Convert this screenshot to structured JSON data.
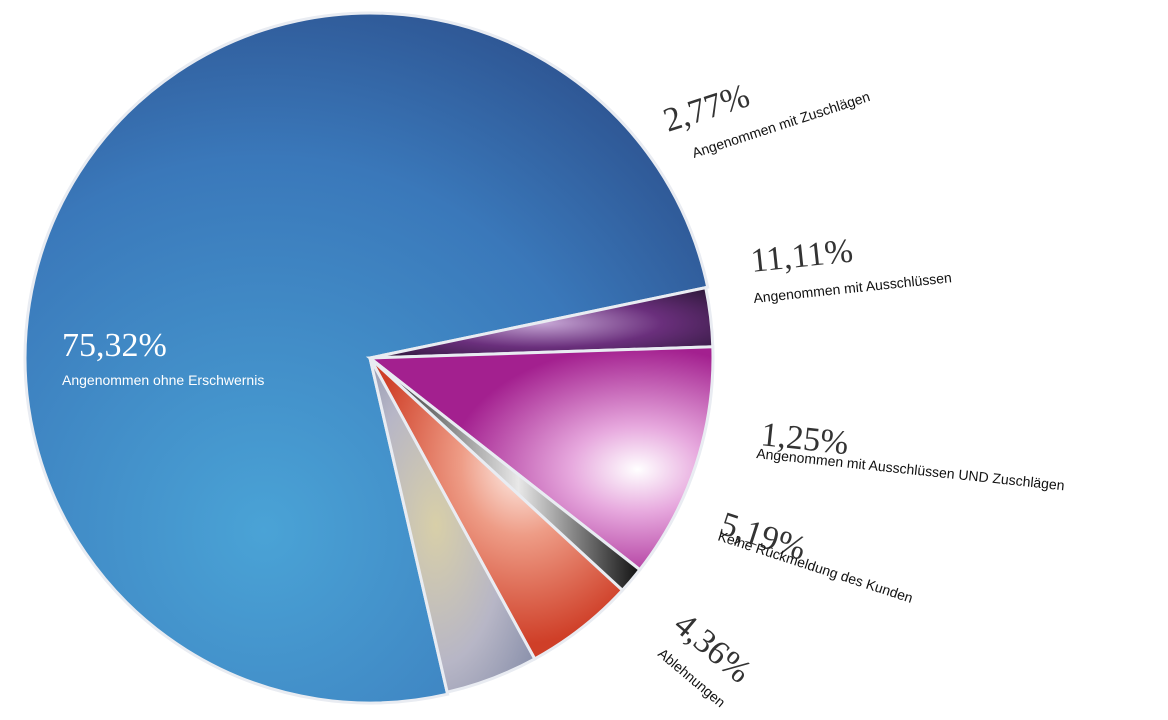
{
  "chart_data": {
    "type": "pie",
    "title": "",
    "slices": [
      {
        "name": "Angenommen ohne Erschwernis",
        "value": 75.32,
        "label": "75,32%",
        "color": "#3d78b8"
      },
      {
        "name": "Angenommen mit Zuschlägen",
        "value": 2.77,
        "label": "2,77%",
        "color": "#5a2a6a"
      },
      {
        "name": "Angenommen mit Ausschlüssen",
        "value": 11.11,
        "label": "11,11%",
        "color": "#b53aa0"
      },
      {
        "name": "Angenommen mit Ausschlüssen UND Zuschlägen",
        "value": 1.25,
        "label": "1,25%",
        "color": "#2b2b2b"
      },
      {
        "name": "Keine Rückmeldung des Kunden",
        "value": 5.19,
        "label": "5,19%",
        "color": "#d9533b"
      },
      {
        "name": "Ablehnungen",
        "value": 4.36,
        "label": "4,36%",
        "color": "#b3b7c7"
      }
    ]
  }
}
